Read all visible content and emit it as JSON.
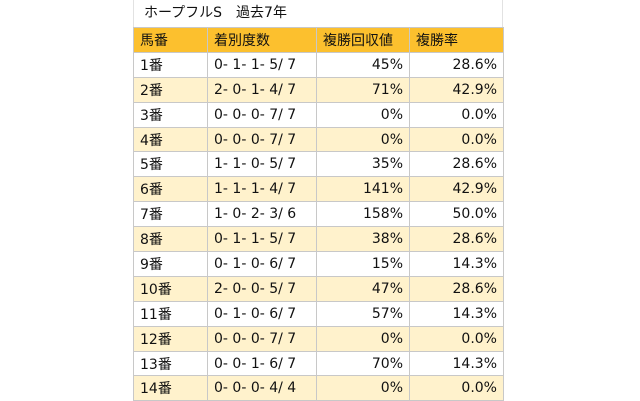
{
  "title": "ホープフルS　過去7年",
  "table": {
    "header": [
      "馬番",
      "着別度数",
      "複勝回収値",
      "複勝率"
    ],
    "rows": [
      [
        "1番",
        "0- 1- 1- 5/ 7",
        "45%",
        "28.6%"
      ],
      [
        "2番",
        "2- 0- 1- 4/ 7",
        "71%",
        "42.9%"
      ],
      [
        "3番",
        "0- 0- 0- 7/ 7",
        "0%",
        "0.0%"
      ],
      [
        "4番",
        "0- 0- 0- 7/ 7",
        "0%",
        "0.0%"
      ],
      [
        "5番",
        "1- 1- 0- 5/ 7",
        "35%",
        "28.6%"
      ],
      [
        "6番",
        "1- 1- 1- 4/ 7",
        "141%",
        "42.9%"
      ],
      [
        "7番",
        "1- 0- 2- 3/ 6",
        "158%",
        "50.0%"
      ],
      [
        "8番",
        "0- 1- 1- 5/ 7",
        "38%",
        "28.6%"
      ],
      [
        "9番",
        "0- 1- 0- 6/ 7",
        "15%",
        "14.3%"
      ],
      [
        "10番",
        "2- 0- 0- 5/ 7",
        "47%",
        "28.6%"
      ],
      [
        "11番",
        "0- 1- 0- 6/ 7",
        "57%",
        "14.3%"
      ],
      [
        "12番",
        "0- 0- 0- 7/ 7",
        "0%",
        "0.0%"
      ],
      [
        "13番",
        "0- 0- 1- 6/ 7",
        "70%",
        "14.3%"
      ],
      [
        "14番",
        "0- 0- 0- 4/ 4",
        "0%",
        "0.0%"
      ]
    ]
  }
}
